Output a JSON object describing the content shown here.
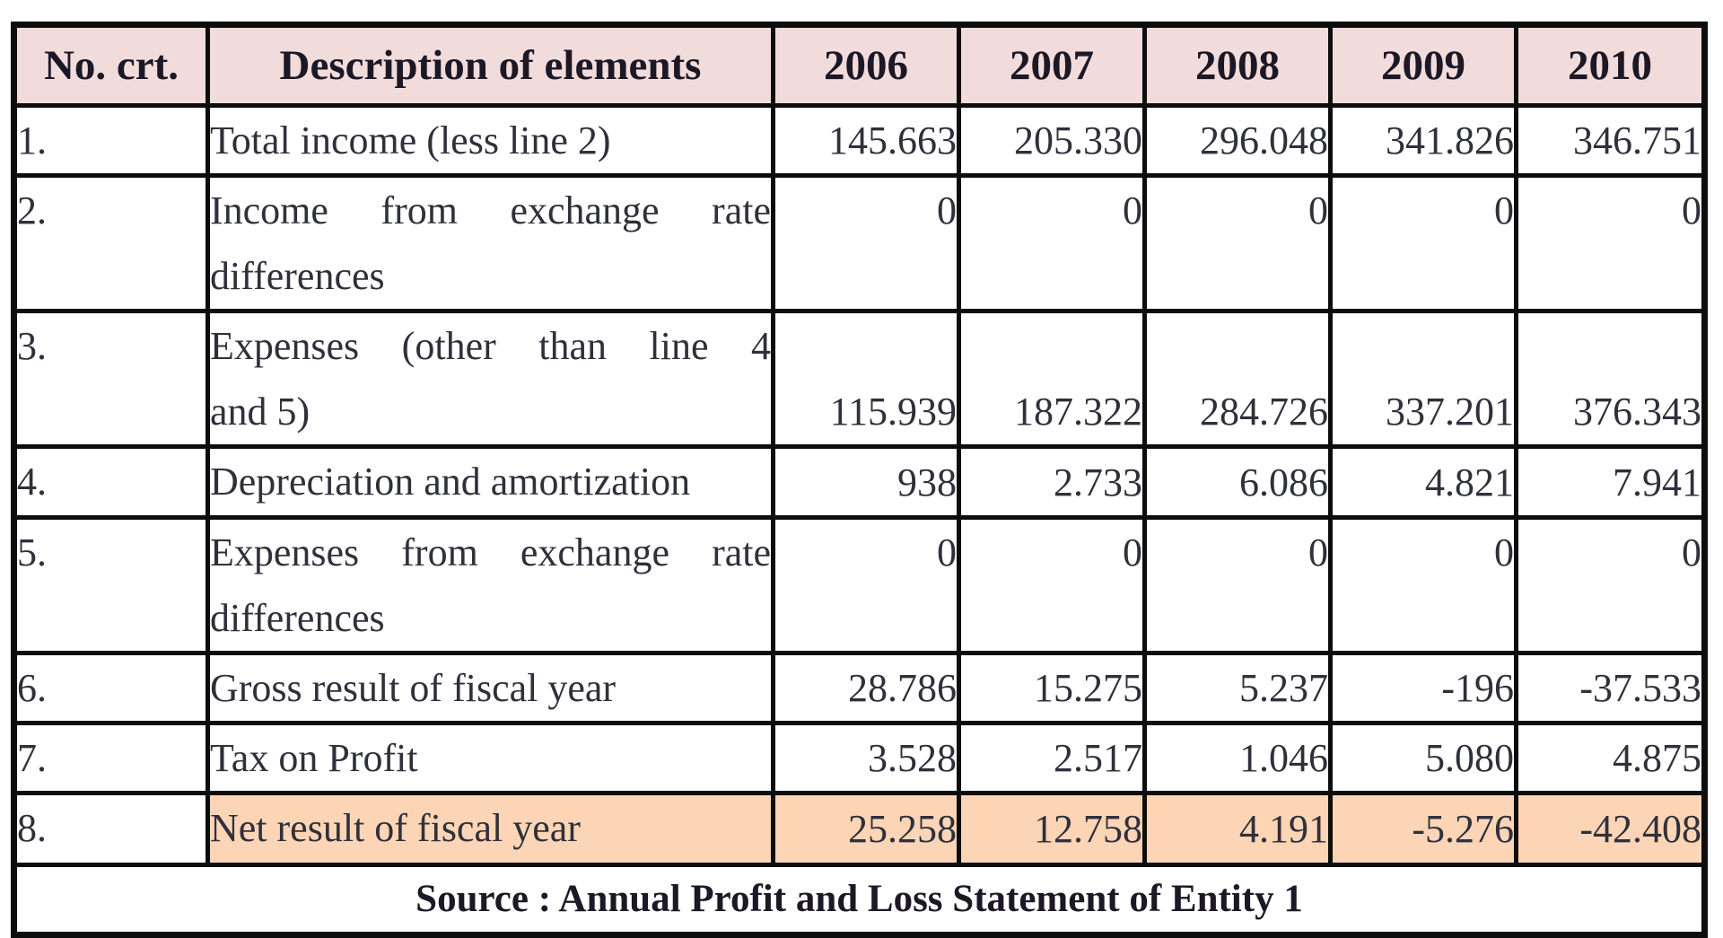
{
  "colors": {
    "header_bg": "#f2dbdb",
    "highlight_bg": "#fbd5b5",
    "border": "#0d0d0d",
    "text": "#30303c",
    "heading_text": "#1c1826",
    "page_bg": "#ffffff"
  },
  "chart_data": {
    "type": "table",
    "title": "",
    "columns": [
      "No. crt.",
      "Description of elements",
      "2006",
      "2007",
      "2008",
      "2009",
      "2010"
    ],
    "rows": [
      {
        "no": "1.",
        "description": "Total income (less line 2)",
        "description_lines": [
          "Total income (less line 2)"
        ],
        "values": [
          "145.663",
          "205.330",
          "296.048",
          "341.826",
          "346.751"
        ],
        "highlight": false,
        "num_valign": "middle"
      },
      {
        "no": "2.",
        "description": "Income from exchange rate differences",
        "description_lines": [
          "Income from exchange rate",
          "differences"
        ],
        "values": [
          "0",
          "0",
          "0",
          "0",
          "0"
        ],
        "highlight": false,
        "num_valign": "top"
      },
      {
        "no": "3.",
        "description": "Expenses (other than line 4 and 5)",
        "description_lines": [
          "Expenses (other than line 4",
          "and 5)"
        ],
        "values": [
          "115.939",
          "187.322",
          "284.726",
          "337.201",
          "376.343"
        ],
        "highlight": false,
        "num_valign": "bottom"
      },
      {
        "no": "4.",
        "description": "Depreciation and amortization",
        "description_lines": [
          "Depreciation and amortization"
        ],
        "values": [
          "938",
          "2.733",
          "6.086",
          "4.821",
          "7.941"
        ],
        "highlight": false,
        "num_valign": "middle"
      },
      {
        "no": "5.",
        "description": "Expenses from exchange rate differences",
        "description_lines": [
          "Expenses from exchange rate",
          "differences"
        ],
        "values": [
          "0",
          "0",
          "0",
          "0",
          "0"
        ],
        "highlight": false,
        "num_valign": "top"
      },
      {
        "no": "6.",
        "description": "Gross result of fiscal year",
        "description_lines": [
          "Gross result of fiscal year"
        ],
        "values": [
          "28.786",
          "15.275",
          "5.237",
          "-196",
          "-37.533"
        ],
        "highlight": false,
        "num_valign": "middle"
      },
      {
        "no": "7.",
        "description": "Tax on Profit",
        "description_lines": [
          "Tax on Profit"
        ],
        "values": [
          "3.528",
          "2.517",
          "1.046",
          "5.080",
          "4.875"
        ],
        "highlight": false,
        "num_valign": "middle"
      },
      {
        "no": "8.",
        "description": "Net result of fiscal year",
        "description_lines": [
          "Net result of fiscal year"
        ],
        "values": [
          "25.258",
          "12.758",
          "4.191",
          "-5.276",
          "-42.408"
        ],
        "highlight": true,
        "num_valign": "middle"
      }
    ],
    "footer": "Source : Annual Profit and Loss Statement of Entity 1",
    "layout": {
      "grid": "on",
      "header_fill": "pink",
      "highlight_row_index": 8
    }
  }
}
